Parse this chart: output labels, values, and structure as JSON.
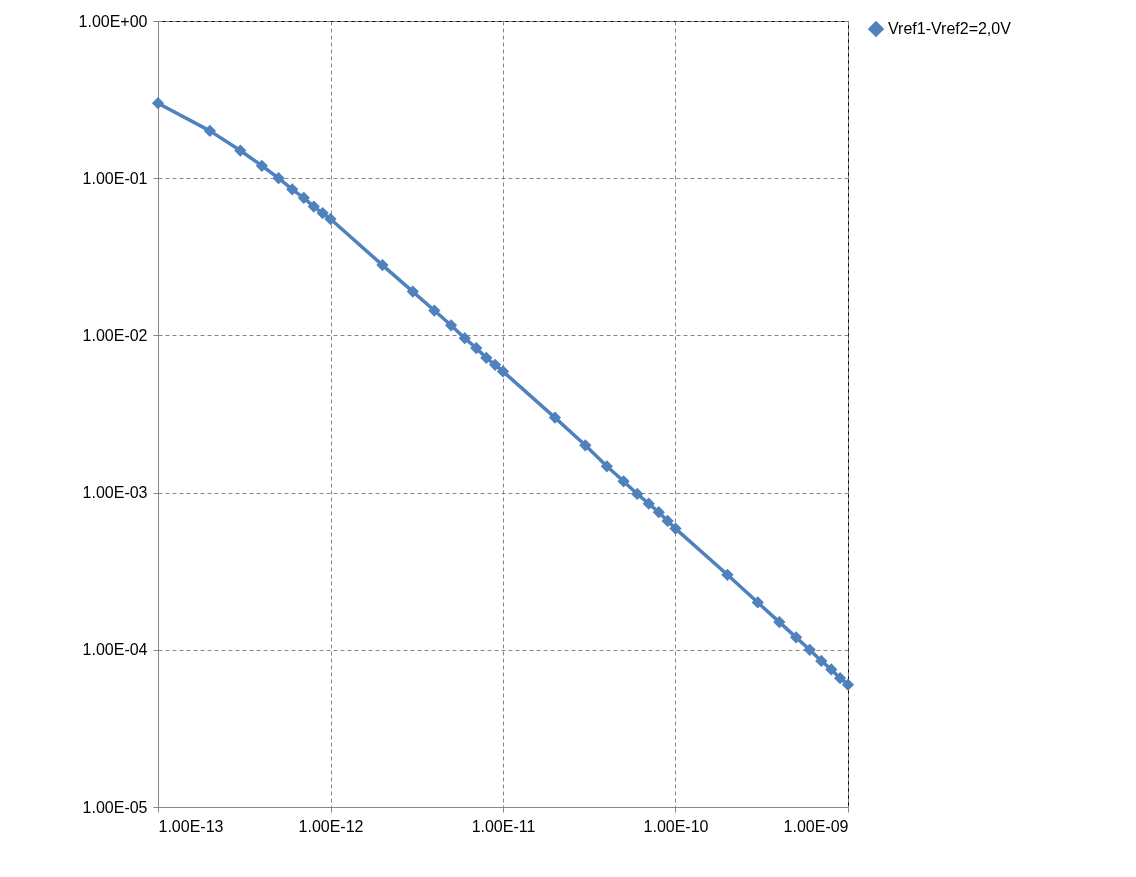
{
  "chart_data": {
    "type": "line",
    "log": "xy",
    "grid": true,
    "legend": "right",
    "marker": "diamond",
    "line_style": "solid",
    "x": [
      1e-13,
      2e-13,
      3e-13,
      4e-13,
      5e-13,
      6e-13,
      7e-13,
      8e-13,
      9e-13,
      1e-12,
      2e-12,
      3e-12,
      4e-12,
      5e-12,
      6e-12,
      7e-12,
      8e-12,
      9e-12,
      1e-11,
      2e-11,
      3e-11,
      4e-11,
      5e-11,
      6e-11,
      7e-11,
      8e-11,
      9e-11,
      1e-10,
      2e-10,
      3e-10,
      4e-10,
      5e-10,
      6e-10,
      7e-10,
      8e-10,
      9e-10,
      1e-09
    ],
    "series": [
      {
        "name": "Vref1-Vref2=2,0V",
        "color": "#4f81bd",
        "values": [
          0.3,
          0.2,
          0.15,
          0.12,
          0.1,
          0.085,
          0.075,
          0.066,
          0.06,
          0.055,
          0.028,
          0.019,
          0.0144,
          0.0116,
          0.0096,
          0.0083,
          0.0072,
          0.0065,
          0.0059,
          0.003,
          0.002,
          0.00147,
          0.00118,
          0.00098,
          0.00085,
          0.00075,
          0.00066,
          0.00059,
          0.0003,
          0.0002,
          0.00015,
          0.00012,
          0.0001,
          8.5e-05,
          7.5e-05,
          6.6e-05,
          6e-05
        ]
      }
    ],
    "xlim": [
      1e-13,
      1e-09
    ],
    "xticks": [
      {
        "value": 1e-13,
        "label": "1.00E-13"
      },
      {
        "value": 1e-12,
        "label": "1.00E-12"
      },
      {
        "value": 1e-11,
        "label": "1.00E-11"
      },
      {
        "value": 1e-10,
        "label": "1.00E-10"
      },
      {
        "value": 1e-09,
        "label": "1.00E-09"
      }
    ],
    "ylim": [
      1e-05,
      1
    ],
    "yticks": [
      {
        "value": 1e-05,
        "label": "1.00E-05"
      },
      {
        "value": 0.0001,
        "label": "1.00E-04"
      },
      {
        "value": 0.001,
        "label": "1.00E-03"
      },
      {
        "value": 0.01,
        "label": "1.00E-02"
      },
      {
        "value": 0.1,
        "label": "1.00E-01"
      },
      {
        "value": 1,
        "label": "1.00E+00"
      }
    ]
  }
}
